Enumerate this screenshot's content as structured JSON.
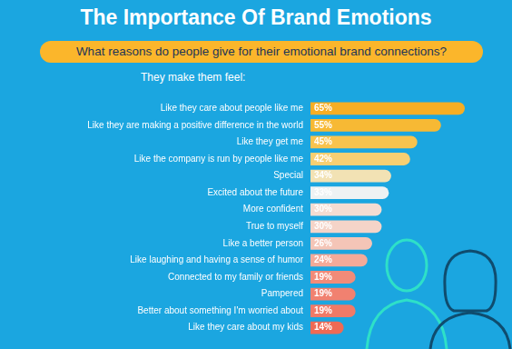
{
  "chart_data": {
    "type": "bar",
    "title": "The Importance Of Brand Emotions",
    "subtitle": "What reasons do people give for their emotional brand connections?",
    "annotations": [
      "They make them feel:"
    ],
    "orientation": "horizontal",
    "categories": [
      "Like they care about people like me",
      "Like they are making a positive difference in the world",
      "Like they get me",
      "Like the company is run by people like me",
      "Special",
      "Excited about the future",
      "More confident",
      "True to myself",
      "Like a better person",
      "Like laughing and having a sense of humor",
      "Connected to my family or friends",
      "Pampered",
      "Better about something I'm worried about",
      "Like they care about my kids"
    ],
    "values": [
      65,
      55,
      45,
      42,
      34,
      33,
      30,
      30,
      26,
      24,
      19,
      19,
      19,
      14
    ],
    "value_labels": [
      "65%",
      "55%",
      "45%",
      "42%",
      "34%",
      "33%",
      "30%",
      "30%",
      "26%",
      "24%",
      "19%",
      "19%",
      "19%",
      "14%"
    ],
    "colors": [
      "#f6ae24",
      "#f7b934",
      "#f8c34e",
      "#f7cf72",
      "#f2e2b4",
      "#eef2f3",
      "#f4dcd2",
      "#f4d4c8",
      "#f4c5b7",
      "#f3aa99",
      "#f28b78",
      "#f18170",
      "#f07a67",
      "#ef6a54"
    ],
    "xlim": [
      0,
      65
    ],
    "data_labels": true,
    "tick_labels": "y",
    "grid": false
  }
}
